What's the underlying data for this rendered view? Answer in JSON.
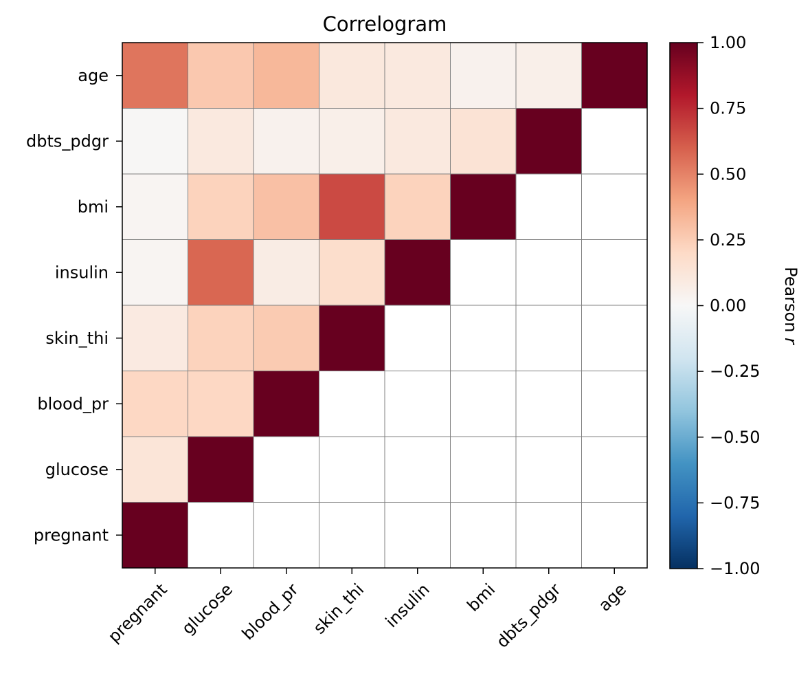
{
  "chart_data": {
    "type": "heatmap",
    "title": "Correlogram",
    "variables": [
      "pregnant",
      "glucose",
      "blood_pr",
      "skin_thi",
      "insulin",
      "bmi",
      "dbts_pdgr",
      "age"
    ],
    "x_labels": [
      "pregnant",
      "glucose",
      "blood_pr",
      "skin_thi",
      "insulin",
      "bmi",
      "dbts_pdgr",
      "age"
    ],
    "y_labels": [
      "age",
      "dbts_pdgr",
      "bmi",
      "insulin",
      "skin_thi",
      "blood_pr",
      "glucose",
      "pregnant"
    ],
    "lower_triangle_masked": true,
    "matrix": [
      [
        1.0,
        0.13,
        0.21,
        0.09,
        0.02,
        0.02,
        0.01,
        0.54
      ],
      [
        0.13,
        1.0,
        0.21,
        0.23,
        0.58,
        0.23,
        0.1,
        0.27
      ],
      [
        0.21,
        0.21,
        1.0,
        0.26,
        0.08,
        0.3,
        0.04,
        0.33
      ],
      [
        0.09,
        0.23,
        0.26,
        1.0,
        0.18,
        0.66,
        0.06,
        0.11
      ],
      [
        0.02,
        0.58,
        0.08,
        0.18,
        1.0,
        0.23,
        0.1,
        0.1
      ],
      [
        0.02,
        0.23,
        0.3,
        0.66,
        0.23,
        1.0,
        0.14,
        0.04
      ],
      [
        0.01,
        0.1,
        0.04,
        0.06,
        0.1,
        0.14,
        1.0,
        0.06
      ],
      [
        0.54,
        0.27,
        0.33,
        0.11,
        0.1,
        0.04,
        0.06,
        1.0
      ]
    ],
    "colorbar": {
      "label": "Pearson r",
      "range": [
        -1.0,
        1.0
      ],
      "ticks": [
        "1.00",
        "0.75",
        "0.50",
        "0.25",
        "0.00",
        "−0.25",
        "−0.50",
        "−0.75",
        "−1.00"
      ],
      "colormap": "RdBu_r",
      "stops": [
        "#053061",
        "#2166ac",
        "#4393c3",
        "#92c5de",
        "#d1e5f0",
        "#f7f7f7",
        "#fddbc7",
        "#f4a582",
        "#d6604d",
        "#b2182b",
        "#67001f"
      ]
    },
    "grid": true,
    "grid_color": "#808080"
  }
}
